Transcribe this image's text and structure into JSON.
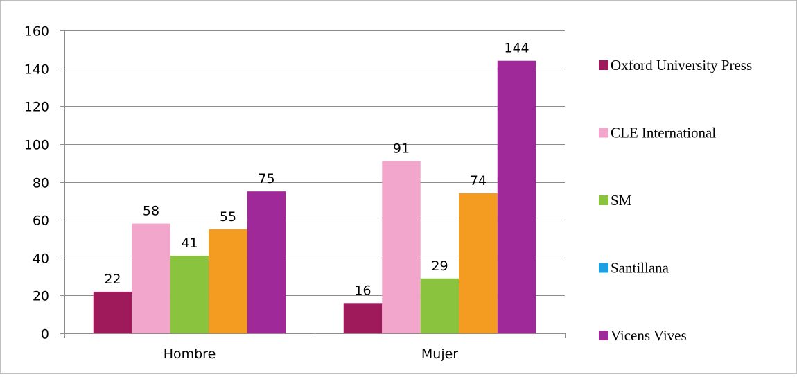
{
  "chart_data": {
    "type": "bar",
    "title": "",
    "xlabel": "",
    "ylabel": "",
    "categories": [
      "Hombre",
      "Mujer"
    ],
    "ylim": [
      0,
      160
    ],
    "yticks": [
      0,
      20,
      40,
      60,
      80,
      100,
      120,
      140,
      160
    ],
    "grid": true,
    "legend_position": "right",
    "series": [
      {
        "name": "Oxford University Press",
        "color": "#9e1a5b",
        "values": [
          22,
          16
        ]
      },
      {
        "name": "CLE International",
        "color": "#f2a6cc",
        "values": [
          58,
          91
        ]
      },
      {
        "name": "SM",
        "color": "#8ac43f",
        "values": [
          41,
          29
        ]
      },
      {
        "name": "Santillana",
        "color": "#f39c21",
        "legend_color": "#1ba1e2",
        "values": [
          55,
          74
        ]
      },
      {
        "name": "Vicens Vives",
        "color": "#a0299a",
        "values": [
          75,
          144
        ]
      }
    ]
  }
}
